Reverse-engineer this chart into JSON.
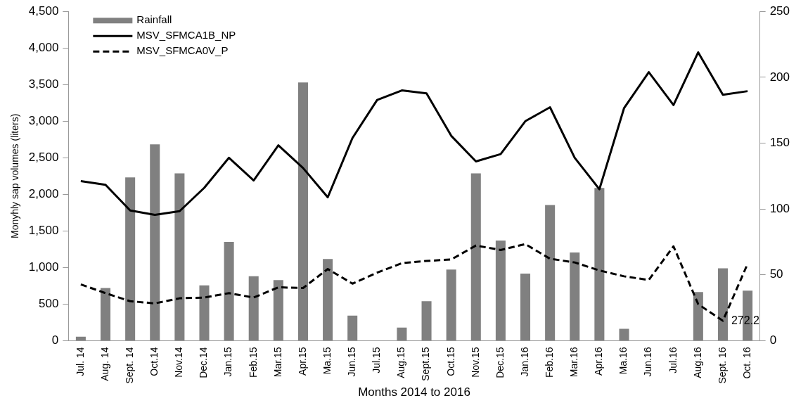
{
  "chart_data": {
    "type": "bar",
    "xlabel": "Months 2014 to 2016",
    "ylabel": "Monyhly sap volumes (liters)",
    "categories": [
      "Jul. 14",
      "Aug. 14",
      "Sept. 14",
      "Oct.14",
      "Nov.14",
      "Dec.14",
      "Jan.15",
      "Feb.15",
      "Mar.15",
      "Apr.15",
      "Ma.15",
      "Jun.15",
      "Jul.15",
      "Aug.15",
      "Sept.15",
      "Oct.15",
      "Nov.15",
      "Dec.15",
      "Jan.16",
      "Feb.16",
      "Mar.16",
      "Apr.16",
      "Ma.16",
      "Jun.16",
      "Jul.16",
      "Aug.16",
      "Sept. 16",
      "Oct. 16"
    ],
    "series": [
      {
        "name": "Rainfall",
        "axis": "y2",
        "color": "#808080",
        "values": [
          3,
          40,
          124,
          149,
          127,
          42,
          75,
          49,
          46,
          196,
          62,
          19,
          0,
          10,
          30,
          54,
          127,
          76,
          51,
          103,
          67,
          116,
          9,
          0,
          0,
          37,
          55,
          38
        ]
      },
      {
        "name": "MSV_SFMCA1B_NP",
        "type": "line",
        "color": "#000000",
        "line_style": "solid",
        "values": [
          2180,
          2130,
          1780,
          1720,
          1770,
          2090,
          2500,
          2190,
          2670,
          2360,
          1960,
          2770,
          3290,
          3420,
          3380,
          2800,
          2450,
          2550,
          3000,
          3190,
          2500,
          2070,
          3180,
          3670,
          3220,
          3940,
          3360,
          3410
        ]
      },
      {
        "name": "MSV_SFMCA0V_P",
        "type": "line",
        "color": "#000000",
        "line_style": "dashed",
        "values": [
          770,
          650,
          540,
          510,
          580,
          590,
          650,
          590,
          730,
          720,
          980,
          780,
          930,
          1060,
          1090,
          1110,
          1300,
          1240,
          1320,
          1120,
          1070,
          960,
          880,
          830,
          1290,
          500,
          272.2,
          1050
        ],
        "value_labels": [
          null,
          null,
          null,
          null,
          null,
          null,
          null,
          null,
          null,
          null,
          null,
          null,
          null,
          null,
          null,
          null,
          null,
          null,
          null,
          null,
          null,
          null,
          null,
          null,
          null,
          null,
          "272.2",
          null
        ]
      }
    ],
    "ylim": [
      0,
      4500
    ],
    "yticks": [
      {
        "value": 0,
        "label": "0"
      },
      {
        "value": 500,
        "label": "500"
      },
      {
        "value": 1000,
        "label": "1,000"
      },
      {
        "value": 1500,
        "label": "1,500"
      },
      {
        "value": 2000,
        "label": "2,000"
      },
      {
        "value": 2500,
        "label": "2,500"
      },
      {
        "value": 3000,
        "label": "3,000"
      },
      {
        "value": 3500,
        "label": "3,500"
      },
      {
        "value": 4000,
        "label": "4,000"
      },
      {
        "value": 4500,
        "label": "4,500"
      }
    ],
    "y2lim": [
      0,
      250
    ],
    "y2ticks": [
      0,
      50,
      100,
      150,
      200,
      250
    ],
    "legend": "top left",
    "grid": false,
    "marker": "none"
  }
}
